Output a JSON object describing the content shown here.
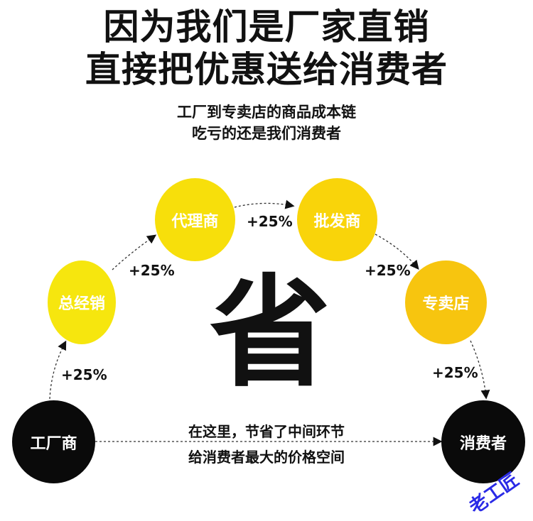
{
  "headline": {
    "line1": "因为我们是厂家直销",
    "line2": "直接把优惠送给消费者"
  },
  "subheadline": {
    "line1": "工厂到专卖店的商品成本链",
    "line2": "吃亏的还是我们消费者"
  },
  "nodes": [
    {
      "label": "工厂商",
      "color": "#0a0a0a"
    },
    {
      "label": "总经销",
      "color": "#f6e60e"
    },
    {
      "label": "代理商",
      "color": "#f7df0b"
    },
    {
      "label": "批发商",
      "color": "#f9d40a"
    },
    {
      "label": "专卖店",
      "color": "#f7c50f"
    },
    {
      "label": "消费者",
      "color": "#0a0a0a"
    }
  ],
  "markups": [
    "+25%",
    "+25%",
    "+25%",
    "+25%",
    "+25%"
  ],
  "center_char": "省",
  "note": {
    "line1": "在这里，节省了中间环节",
    "line2": "给消费者最大的价格空间"
  },
  "watermark": "老工匠"
}
